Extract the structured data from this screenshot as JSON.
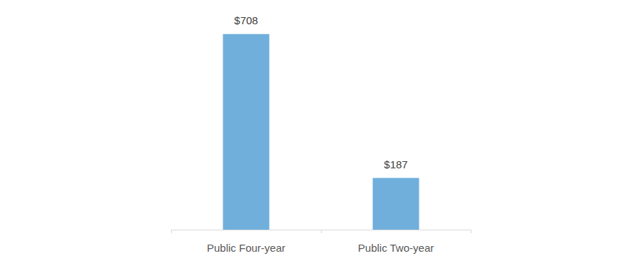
{
  "chart_data": {
    "type": "bar",
    "categories": [
      "Public Four-year",
      "Public Two-year"
    ],
    "values": [
      708,
      187
    ],
    "value_labels": [
      "$708",
      "$187"
    ],
    "data_labels": true,
    "color": "#70afdc",
    "ylim": [
      0,
      800
    ],
    "yticks": [
      0,
      800
    ],
    "grid": false,
    "tick_labels": "x"
  }
}
